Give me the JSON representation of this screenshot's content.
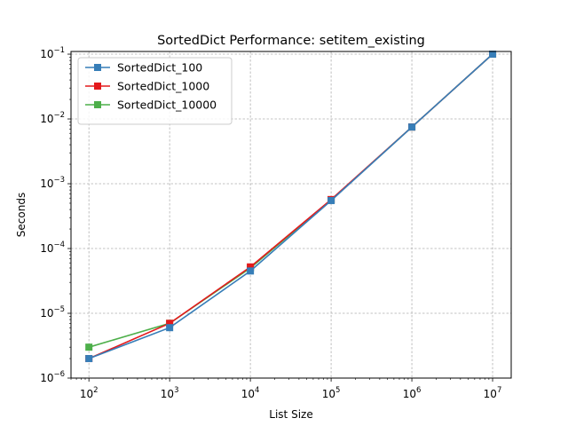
{
  "chart_data": {
    "type": "line",
    "title": "SortedDict Performance: setitem_existing",
    "xlabel": "List Size",
    "ylabel": "Seconds",
    "x_scale": "log",
    "y_scale": "log",
    "xlim": [
      60,
      17000000
    ],
    "ylim": [
      1e-06,
      0.11
    ],
    "grid": true,
    "legend_position": "upper-left",
    "x": [
      100,
      1000,
      10000,
      100000,
      1000000,
      10000000
    ],
    "x_ticks": [
      {
        "value": 100,
        "base": "10",
        "exp": "2"
      },
      {
        "value": 1000,
        "base": "10",
        "exp": "3"
      },
      {
        "value": 10000,
        "base": "10",
        "exp": "4"
      },
      {
        "value": 100000,
        "base": "10",
        "exp": "5"
      },
      {
        "value": 1000000,
        "base": "10",
        "exp": "6"
      },
      {
        "value": 10000000,
        "base": "10",
        "exp": "7"
      }
    ],
    "y_ticks": [
      {
        "value": 1e-06,
        "base": "10",
        "exp": "−6"
      },
      {
        "value": 1e-05,
        "base": "10",
        "exp": "−5"
      },
      {
        "value": 0.0001,
        "base": "10",
        "exp": "−4"
      },
      {
        "value": 0.001,
        "base": "10",
        "exp": "−3"
      },
      {
        "value": 0.01,
        "base": "10",
        "exp": "−2"
      },
      {
        "value": 0.1,
        "base": "10",
        "exp": "−1"
      }
    ],
    "series": [
      {
        "name": "SortedDict_100",
        "color": "#377eb8",
        "values": [
          2e-06,
          6e-06,
          4.5e-05,
          0.00055,
          0.0075,
          0.1
        ]
      },
      {
        "name": "SortedDict_1000",
        "color": "#e41a1c",
        "values": [
          2e-06,
          7e-06,
          5.2e-05,
          0.00057,
          0.0075,
          0.1
        ]
      },
      {
        "name": "SortedDict_10000",
        "color": "#4daf4a",
        "values": [
          3e-06,
          7e-06,
          5e-05,
          0.00056,
          0.0075,
          0.1
        ]
      }
    ]
  }
}
